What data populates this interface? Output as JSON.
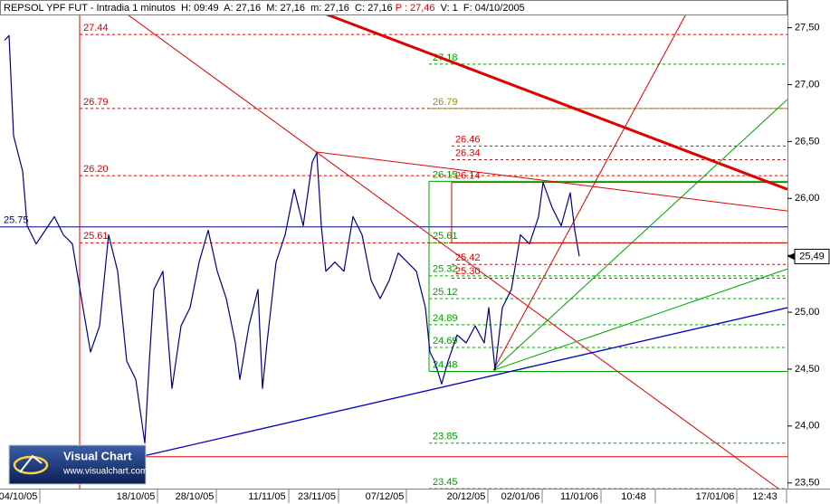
{
  "chart_data": {
    "type": "line",
    "title_parts": [
      {
        "text": "REPSOL YPF FUT - Intradia 1 minutos  H: 09:49  A: 27,16  M: 27,16  m: 27,16  C: 27,16 ",
        "color": "#000000"
      },
      {
        "text": "P : 27,46",
        "color": "#e00000"
      },
      {
        "text": "  V: 1  F: 04/10/2005",
        "color": "#000000"
      }
    ],
    "logo": {
      "title": "Visual Chart",
      "url": "www.visualchart.com"
    },
    "xlim": [
      0,
      174
    ],
    "ylim": [
      23.45,
      27.68
    ],
    "yticks": [
      {
        "value": 23.5,
        "label": "23,50"
      },
      {
        "value": 24,
        "label": "24,00"
      },
      {
        "value": 24.5,
        "label": "24,50"
      },
      {
        "value": 25,
        "label": "25,00"
      },
      {
        "value": 25.5,
        "label": "25,50"
      },
      {
        "value": 26,
        "label": "26,00"
      },
      {
        "value": 26.5,
        "label": "26,50"
      },
      {
        "value": 27,
        "label": "27,00"
      },
      {
        "value": 27.5,
        "label": "27,50"
      }
    ],
    "xticks": [
      {
        "value": 4,
        "label": "04/10/05"
      },
      {
        "value": 30,
        "label": "18/10/05"
      },
      {
        "value": 43,
        "label": "28/10/05"
      },
      {
        "value": 59,
        "label": "11/11/05"
      },
      {
        "value": 70,
        "label": "23/11/05"
      },
      {
        "value": 85,
        "label": "07/12/05"
      },
      {
        "value": 103,
        "label": "20/12/05"
      },
      {
        "value": 115,
        "label": "02/01/06"
      },
      {
        "value": 128,
        "label": "11/01/06"
      },
      {
        "value": 140,
        "label": "10:48"
      },
      {
        "value": 158,
        "label": "17/01/06"
      },
      {
        "value": 169,
        "label": "12:43"
      }
    ],
    "last_price": {
      "value": 25.49,
      "label": "25,49"
    },
    "series": [
      {
        "name": "REPSOL YPF FUT",
        "color": "#000080",
        "x": [
          1,
          2,
          3,
          5,
          6,
          8,
          10,
          12,
          14,
          16,
          18,
          20,
          22,
          24,
          26,
          28,
          30,
          32,
          33,
          34,
          36,
          38,
          40,
          42,
          44,
          46,
          48,
          50,
          52,
          53,
          55,
          57,
          58,
          59,
          61,
          63,
          65,
          67,
          69,
          70,
          71,
          72,
          74,
          76,
          78,
          80,
          82,
          84,
          86,
          88,
          90,
          92,
          94,
          95,
          96,
          97.6,
          99,
          101,
          103,
          105,
          107,
          108,
          109.4,
          111,
          113,
          115,
          117,
          119,
          120,
          122,
          124,
          126,
          127,
          128
        ],
        "values": [
          27.39,
          27.43,
          26.55,
          26.24,
          25.76,
          25.6,
          25.72,
          25.84,
          25.68,
          25.6,
          25.12,
          24.65,
          24.88,
          25.68,
          25.36,
          24.57,
          24.41,
          23.85,
          24.57,
          25.2,
          25.36,
          24.33,
          24.88,
          25.04,
          25.44,
          25.72,
          25.36,
          25.12,
          24.73,
          24.41,
          24.88,
          25.2,
          24.33,
          24.73,
          25.44,
          25.68,
          26.08,
          25.76,
          26.32,
          26.4,
          25.76,
          25.36,
          25.44,
          25.36,
          25.84,
          25.68,
          25.28,
          25.12,
          25.28,
          25.52,
          25.44,
          25.36,
          25.04,
          24.65,
          24.57,
          24.37,
          24.57,
          24.8,
          24.73,
          24.88,
          24.73,
          25.04,
          24.49,
          25.04,
          25.2,
          25.68,
          25.6,
          25.84,
          26.14,
          25.92,
          25.76,
          26.05,
          25.72,
          25.49
        ]
      }
    ],
    "levels": [
      {
        "value": 27.44,
        "label": "27.44",
        "color": "#e00000",
        "style": "dashed",
        "from": 17.6
      },
      {
        "value": 26.79,
        "label": "26.79",
        "color": "#e00000",
        "style": "dashed",
        "from": 17.6
      },
      {
        "value": 26.2,
        "label": "26.20",
        "color": "#e00000",
        "style": "dashed",
        "from": 17.6
      },
      {
        "value": 25.61,
        "label": "25.61",
        "color": "#e00000",
        "style": "dashed",
        "from": 17.6
      },
      {
        "value": 25.75,
        "label": "25.75",
        "color": "#000080",
        "style": "solid",
        "from": 0
      },
      {
        "value": 23.73,
        "color": "#e00000",
        "style": "solid",
        "from": 17.6
      },
      {
        "value": 27.18,
        "label": "27.18",
        "color": "#00a000",
        "style": "dashed",
        "from": 94.8
      },
      {
        "value": 26.79,
        "label": "26.79",
        "color": "#a08a10",
        "style": "solid",
        "from": 94.8
      },
      {
        "value": 26.46,
        "label": "26.46",
        "color": "#e00000",
        "style": "dashed",
        "from": 99.8
      },
      {
        "value": 26.34,
        "label": "26.34",
        "color": "#e00000",
        "style": "dashed",
        "from": 99.8
      },
      {
        "value": 26.15,
        "label": "26.15",
        "color": "#00a000",
        "style": "solid",
        "from": 94.8
      },
      {
        "value": 26.14,
        "label": "26.14",
        "color": "#e00000",
        "style": "solid",
        "from": 99.8
      },
      {
        "value": 25.61,
        "label": "25.61",
        "color": "#00a000",
        "style": "dashed",
        "from": 94.8
      },
      {
        "value": 25.61,
        "color": "#e00000",
        "style": "solid",
        "from": 99.8
      },
      {
        "value": 25.42,
        "label": "25.42",
        "color": "#e00000",
        "style": "dashed",
        "from": 99.8
      },
      {
        "value": 25.32,
        "label": "25.32",
        "color": "#00a000",
        "style": "dashed",
        "from": 94.8
      },
      {
        "value": 25.3,
        "label": "25.30",
        "color": "#e00000",
        "style": "dashed",
        "from": 99.8
      },
      {
        "value": 25.12,
        "label": "25.12",
        "color": "#00a000",
        "style": "dashed",
        "from": 94.8
      },
      {
        "value": 24.89,
        "label": "24.89",
        "color": "#00a000",
        "style": "dashed",
        "from": 94.8
      },
      {
        "value": 24.69,
        "label": "24.69",
        "color": "#00a000",
        "style": "dashed",
        "from": 94.8
      },
      {
        "value": 24.48,
        "label": "24.48",
        "color": "#00a000",
        "style": "solid",
        "from": 94.8
      },
      {
        "value": 23.85,
        "label": "23.85",
        "color": "#00a000",
        "style": "dashed",
        "from": 94.8
      },
      {
        "value": 23.45,
        "label": "23.45",
        "color": "#00a000",
        "style": "dashed",
        "from": 94.8
      }
    ],
    "trendlines": [
      {
        "color": "#e00000",
        "width": 3,
        "x": [
          70,
          174
        ],
        "y": [
          27.65,
          26.08
        ]
      },
      {
        "color": "#e00000",
        "width": 1,
        "x": [
          27,
          172
        ],
        "y": [
          27.65,
          23.45
        ]
      },
      {
        "color": "#e00000",
        "width": 1,
        "x": [
          69.6,
          174
        ],
        "y": [
          26.41,
          25.89
        ]
      },
      {
        "color": "#e00000",
        "width": 1,
        "x": [
          17.6,
          17.6
        ],
        "y": [
          27.68,
          23.45
        ]
      },
      {
        "color": "#e00000",
        "width": 1,
        "x": [
          109,
          152
        ],
        "y": [
          24.49,
          27.65
        ]
      },
      {
        "color": "#00a000",
        "width": 1,
        "x": [
          109,
          174
        ],
        "y": [
          24.49,
          26.87
        ]
      },
      {
        "color": "#00a000",
        "width": 1,
        "x": [
          109,
          174
        ],
        "y": [
          24.49,
          25.38
        ]
      },
      {
        "color": "#0000c0",
        "width": 1.3,
        "x": [
          31,
          174
        ],
        "y": [
          23.73,
          25.04
        ]
      },
      {
        "color": "#00a000",
        "width": 1,
        "x": [
          94.8,
          94.8
        ],
        "y": [
          24.48,
          26.15
        ]
      },
      {
        "color": "#e00000",
        "width": 1,
        "x": [
          99.8,
          99.8
        ],
        "y": [
          26.14,
          25.61
        ]
      }
    ]
  }
}
